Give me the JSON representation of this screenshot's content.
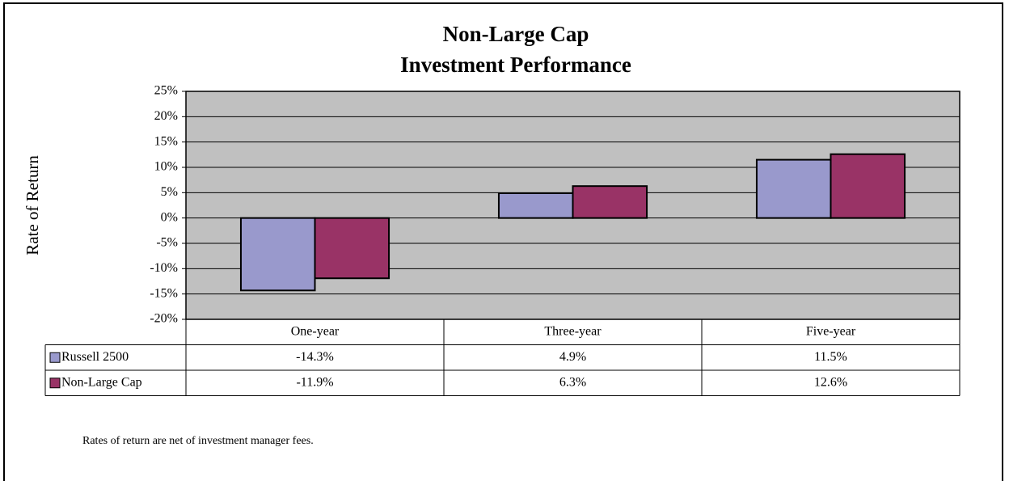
{
  "chart_data": {
    "type": "bar",
    "title": [
      "Non-Large Cap",
      "Investment Performance"
    ],
    "y_label": "Rate of Return",
    "categories": [
      "One-year",
      "Three-year",
      "Five-year"
    ],
    "series": [
      {
        "name": "Russell 2500",
        "color": "#9999cc",
        "values": [
          -14.3,
          4.9,
          11.5
        ],
        "value_labels": [
          "-14.3%",
          "4.9%",
          "11.5%"
        ]
      },
      {
        "name": "Non-Large Cap",
        "color": "#993366",
        "values": [
          -11.9,
          6.3,
          12.6
        ],
        "value_labels": [
          "-11.9%",
          "6.3%",
          "12.6%"
        ]
      }
    ],
    "ylim": [
      -20,
      25
    ],
    "yticks": [
      {
        "value": -20,
        "label": "-20%"
      },
      {
        "value": -15,
        "label": "-15%"
      },
      {
        "value": -10,
        "label": "-10%"
      },
      {
        "value": -5,
        "label": "-5%"
      },
      {
        "value": 0,
        "label": "0%"
      },
      {
        "value": 5,
        "label": "5%"
      },
      {
        "value": 10,
        "label": "10%"
      },
      {
        "value": 15,
        "label": "15%"
      },
      {
        "value": 20,
        "label": "20%"
      },
      {
        "value": 25,
        "label": "25%"
      }
    ],
    "grid": true,
    "plot_background": "#c0c0c0",
    "footnote": "Rates of return are net of investment manager fees."
  }
}
